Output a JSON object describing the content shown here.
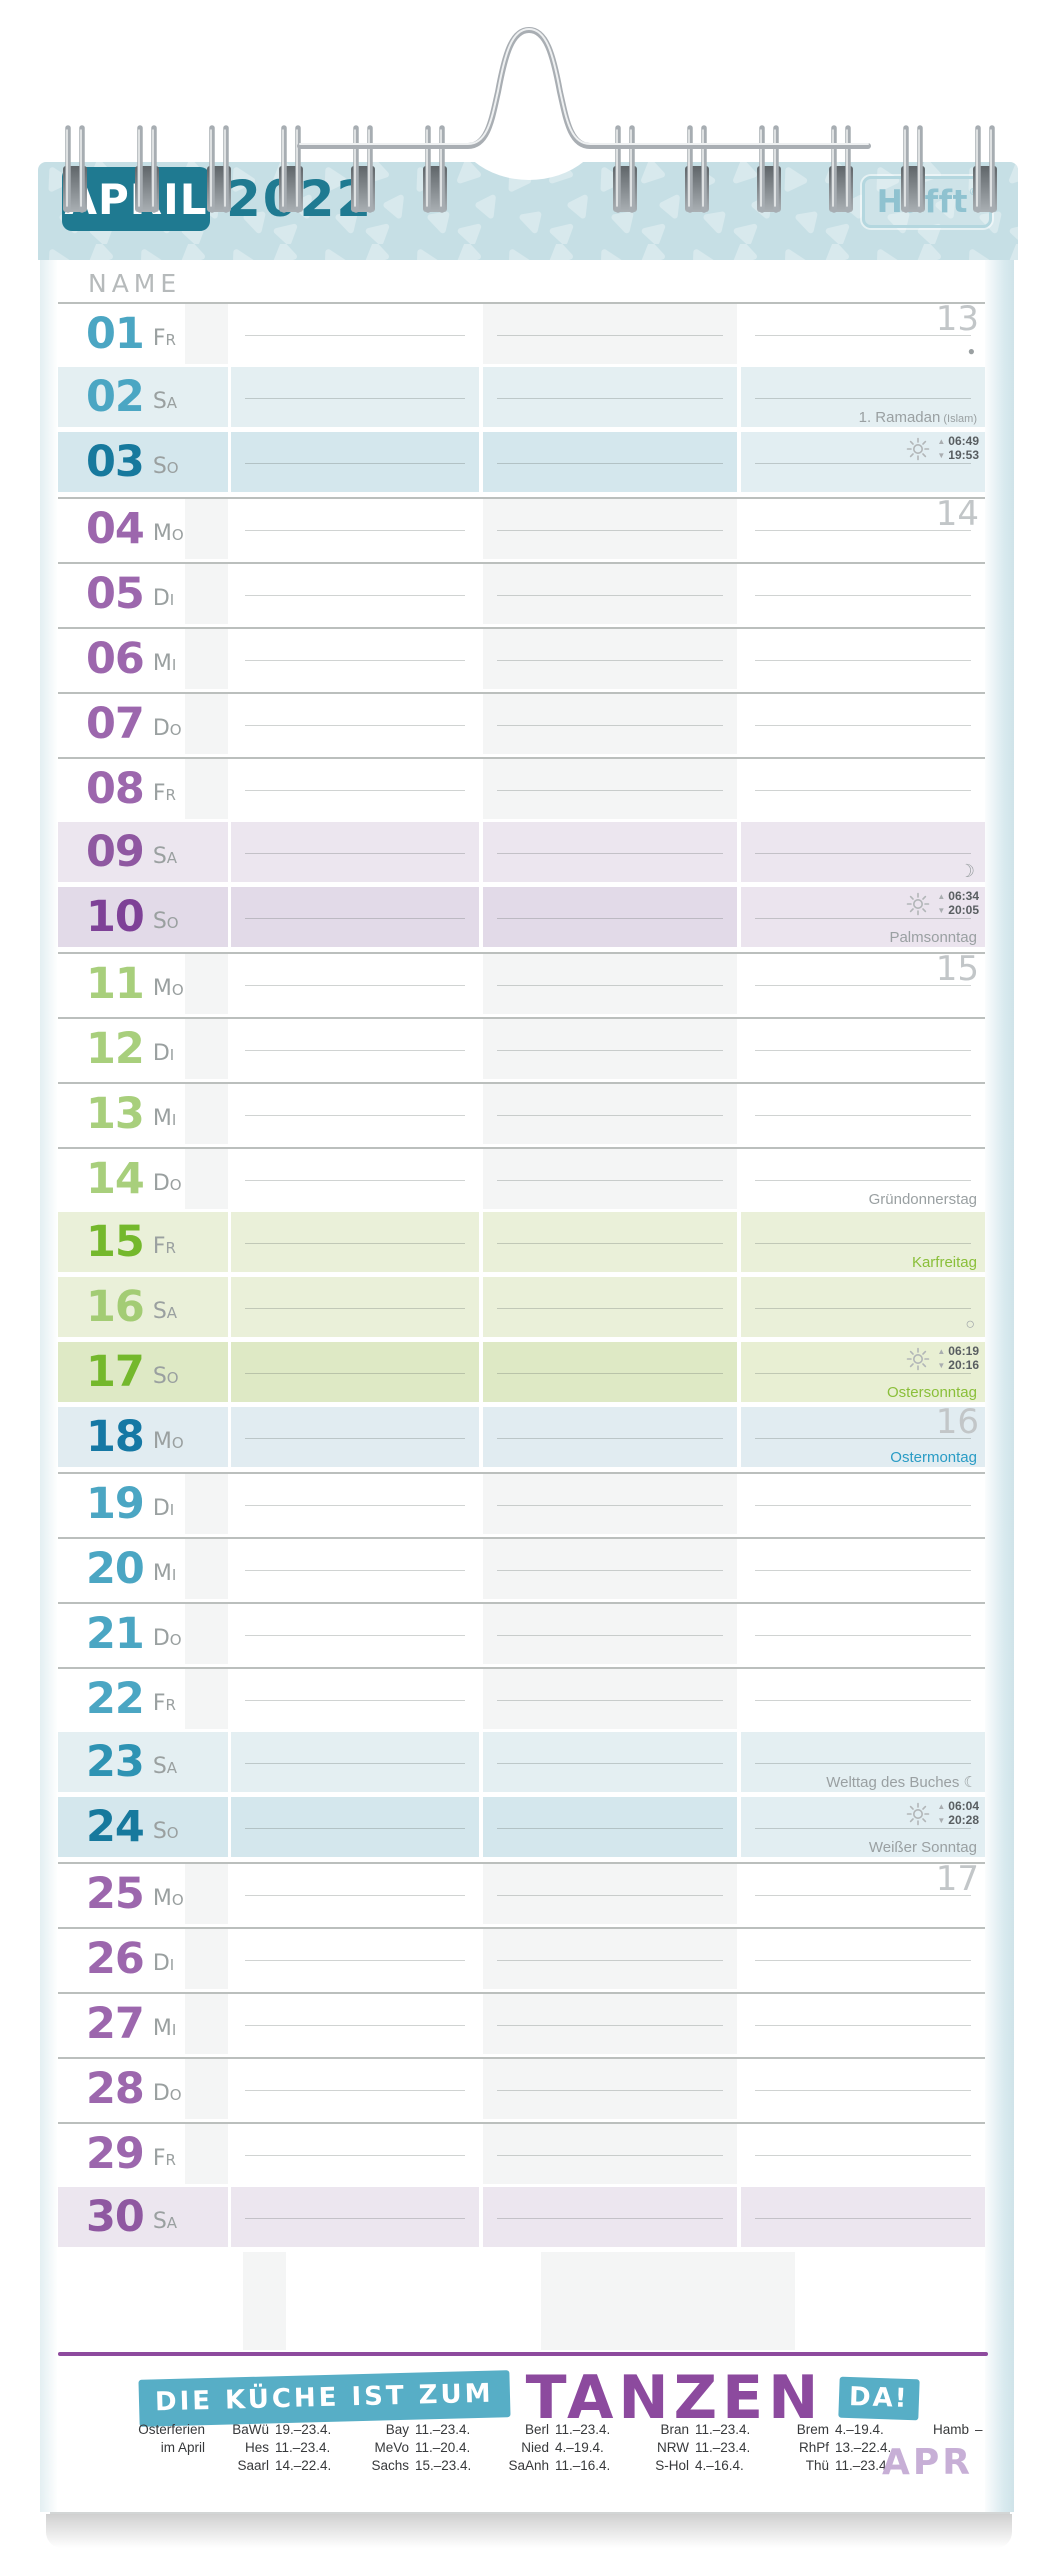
{
  "header": {
    "month": "APRIL",
    "year": "2022",
    "brand": "Häfft",
    "brand_mark": "®",
    "name_label": "NAME"
  },
  "colors": {
    "band_teal": "#c6dfe5",
    "month_box_teal": "#1f7a91",
    "accent_purple": "#8e4a9e",
    "quote_teal": "#57aec6",
    "holiday_green": "#8abf3a",
    "holiday_blue": "#2a9cc5"
  },
  "moon_symbols": {
    "new": "●",
    "firstQuarter": "☽",
    "full": "○",
    "lastQuarter": "☾"
  },
  "rows": [
    {
      "num": "01",
      "wd": "Fr",
      "tint": "none",
      "numc": "teal",
      "week": "13",
      "moon": "new"
    },
    {
      "num": "02",
      "wd": "Sa",
      "tint": "teal1",
      "numc": "teal",
      "note": "1. Ramadan",
      "note_suffix": "(Islam)",
      "note_color": "grey"
    },
    {
      "num": "03",
      "wd": "So",
      "tint": "teal2",
      "numc": "tealDark",
      "sunrise": "06:49",
      "sunset": "19:53"
    },
    {
      "num": "04",
      "wd": "Mo",
      "tint": "none",
      "numc": "purple",
      "week": "14"
    },
    {
      "num": "05",
      "wd": "Di",
      "tint": "none",
      "numc": "purple"
    },
    {
      "num": "06",
      "wd": "Mi",
      "tint": "none",
      "numc": "purple"
    },
    {
      "num": "07",
      "wd": "Do",
      "tint": "none",
      "numc": "purple"
    },
    {
      "num": "08",
      "wd": "Fr",
      "tint": "none",
      "numc": "purple"
    },
    {
      "num": "09",
      "wd": "Sa",
      "tint": "purple1",
      "numc": "purpleMid",
      "moon": "firstQuarter"
    },
    {
      "num": "10",
      "wd": "So",
      "tint": "purple2",
      "numc": "purpleDark",
      "sunrise": "06:34",
      "sunset": "20:05",
      "note": "Palmsonntag",
      "note_color": "grey"
    },
    {
      "num": "11",
      "wd": "Mo",
      "tint": "none",
      "numc": "green",
      "week": "15"
    },
    {
      "num": "12",
      "wd": "Di",
      "tint": "none",
      "numc": "green"
    },
    {
      "num": "13",
      "wd": "Mi",
      "tint": "none",
      "numc": "green"
    },
    {
      "num": "14",
      "wd": "Do",
      "tint": "none",
      "numc": "green",
      "note": "Gründonnerstag",
      "note_color": "grey"
    },
    {
      "num": "15",
      "wd": "Fr",
      "tint": "green1",
      "numc": "greenBright",
      "note": "Karfreitag",
      "note_color": "green"
    },
    {
      "num": "16",
      "wd": "Sa",
      "tint": "green1",
      "numc": "greenMid",
      "moon": "full"
    },
    {
      "num": "17",
      "wd": "So",
      "tint": "green2",
      "numc": "greenBright",
      "sunrise": "06:19",
      "sunset": "20:16",
      "note": "Ostersonntag",
      "note_color": "green"
    },
    {
      "num": "18",
      "wd": "Mo",
      "tint": "blue1",
      "numc": "blueDark",
      "week": "16",
      "note": "Ostermontag",
      "note_color": "blue"
    },
    {
      "num": "19",
      "wd": "Di",
      "tint": "none",
      "numc": "teal"
    },
    {
      "num": "20",
      "wd": "Mi",
      "tint": "none",
      "numc": "teal"
    },
    {
      "num": "21",
      "wd": "Do",
      "tint": "none",
      "numc": "teal"
    },
    {
      "num": "22",
      "wd": "Fr",
      "tint": "none",
      "numc": "teal"
    },
    {
      "num": "23",
      "wd": "Sa",
      "tint": "teal1",
      "numc": "tealMid",
      "note": "Welttag des Buches ☾",
      "note_color": "grey"
    },
    {
      "num": "24",
      "wd": "So",
      "tint": "teal2",
      "numc": "tealDark",
      "sunrise": "06:04",
      "sunset": "20:28",
      "note": "Weißer Sonntag",
      "note_color": "grey"
    },
    {
      "num": "25",
      "wd": "Mo",
      "tint": "none",
      "numc": "purple",
      "week": "17"
    },
    {
      "num": "26",
      "wd": "Di",
      "tint": "none",
      "numc": "purple"
    },
    {
      "num": "27",
      "wd": "Mi",
      "tint": "none",
      "numc": "purple"
    },
    {
      "num": "28",
      "wd": "Do",
      "tint": "none",
      "numc": "purple"
    },
    {
      "num": "29",
      "wd": "Fr",
      "tint": "none",
      "numc": "purple"
    },
    {
      "num": "30",
      "wd": "Sa",
      "tint": "purple1",
      "numc": "purpleMid"
    }
  ],
  "footer": {
    "quote": {
      "part1": "DIE KÜCHE IST ZUM",
      "part2": "TANZEN",
      "part3": "DA!"
    },
    "month_abbr": "APR",
    "holidays": {
      "label_lines": [
        "Osterferien",
        "im April"
      ],
      "groups": [
        [
          {
            "state": "BaWü",
            "dates": "19.–23.4."
          },
          {
            "state": "Hes",
            "dates": "11.–23.4."
          },
          {
            "state": "Saarl",
            "dates": "14.–22.4."
          }
        ],
        [
          {
            "state": "Bay",
            "dates": "11.–23.4."
          },
          {
            "state": "MeVo",
            "dates": "11.–20.4."
          },
          {
            "state": "Sachs",
            "dates": "15.–23.4."
          }
        ],
        [
          {
            "state": "Berl",
            "dates": "11.–23.4."
          },
          {
            "state": "Nied",
            "dates": "4.–19.4."
          },
          {
            "state": "SaAnh",
            "dates": "11.–16.4."
          }
        ],
        [
          {
            "state": "Bran",
            "dates": "11.–23.4."
          },
          {
            "state": "NRW",
            "dates": "11.–23.4."
          },
          {
            "state": "S-Hol",
            "dates": "4.–16.4."
          }
        ],
        [
          {
            "state": "Brem",
            "dates": "4.–19.4."
          },
          {
            "state": "RhPf",
            "dates": "13.–22.4."
          },
          {
            "state": "Thü",
            "dates": "11.–23.4."
          }
        ],
        [
          {
            "state": "Hamb",
            "dates": "–"
          }
        ]
      ]
    }
  }
}
